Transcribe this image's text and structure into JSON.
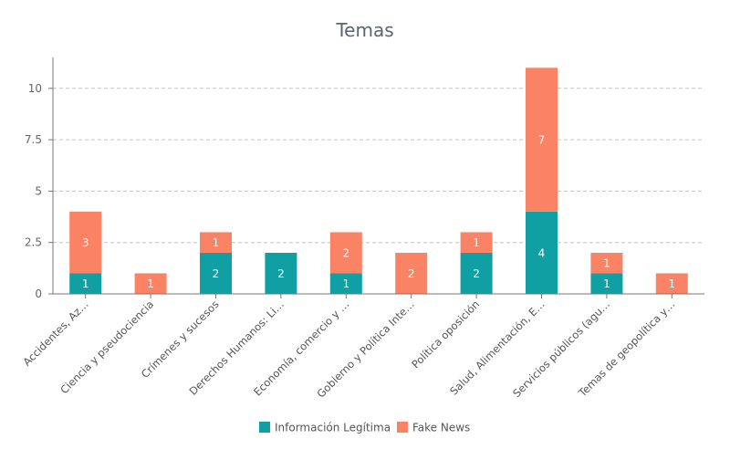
{
  "chart_data": {
    "type": "bar",
    "stacked": true,
    "title": "Temas",
    "xlabel": "",
    "ylabel": "",
    "ylim": [
      0,
      11.5
    ],
    "yticks": [
      "0",
      "2.5",
      "5",
      "7.5",
      "10"
    ],
    "yticks_values": [
      0,
      2.5,
      5,
      7.5,
      10
    ],
    "categories": [
      "Accidentes, Az…",
      "Ciencia y pseudociencia",
      "Crímenes y sucesos",
      "Derechos Humanos: Li…",
      "Economía, comercio y …",
      "Gobierno y Política Inte…",
      "Política oposición",
      "Salud, Alimentación, E…",
      "Servicios públicos (agu…",
      "Temas de geopolítica y…"
    ],
    "series": [
      {
        "name": "Información Legítima",
        "color": "#10a0a3",
        "values": [
          1,
          0,
          2,
          2,
          1,
          0,
          2,
          4,
          1,
          0
        ]
      },
      {
        "name": "Fake News",
        "color": "#fa8366",
        "values": [
          3,
          1,
          1,
          0,
          2,
          2,
          1,
          7,
          1,
          1
        ]
      }
    ],
    "grid": true,
    "legend_position": "bottom"
  }
}
